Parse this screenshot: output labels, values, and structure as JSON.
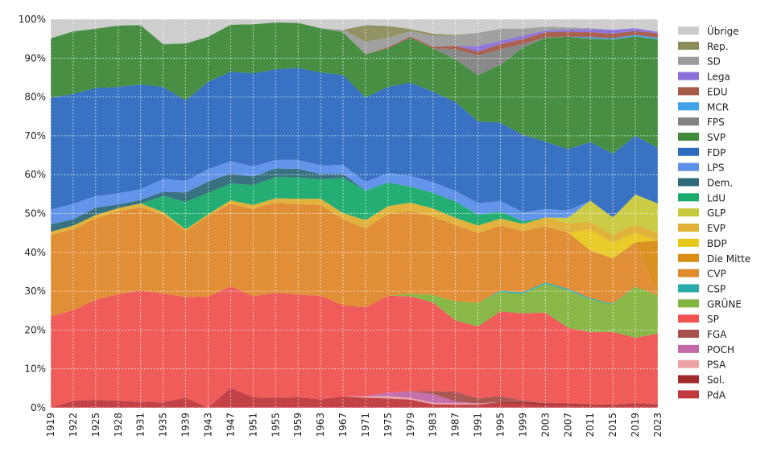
{
  "chart_data": {
    "type": "area",
    "stacked": true,
    "ylim": [
      0,
      100
    ],
    "yticks": [
      "0%",
      "10%",
      "20%",
      "30%",
      "40%",
      "50%",
      "60%",
      "70%",
      "80%",
      "90%",
      "100%"
    ],
    "grid": true,
    "legend_position": "right",
    "categories": [
      "1919",
      "1922",
      "1925",
      "1928",
      "1931",
      "1935",
      "1939",
      "1943",
      "1947",
      "1951",
      "1955",
      "1959",
      "1963",
      "1967",
      "1971",
      "1975",
      "1979",
      "1983",
      "1987",
      "1991",
      "1995",
      "1999",
      "2003",
      "2007",
      "2011",
      "2015",
      "2019",
      "2023"
    ],
    "series": [
      {
        "name": "PdA",
        "color": "#c0393d",
        "values": [
          0,
          1.8,
          2.0,
          1.8,
          1.5,
          1.4,
          2.6,
          0,
          5.1,
          2.7,
          2.6,
          2.7,
          2.2,
          2.9,
          2.6,
          2.4,
          2.1,
          0.9,
          0.8,
          0.8,
          1.2,
          1.0,
          0.7,
          0.7,
          0.5,
          0.4,
          1.0,
          0.5
        ]
      },
      {
        "name": "Sol.",
        "color": "#9e2a2a",
        "values": [
          0,
          0,
          0,
          0,
          0,
          0,
          0,
          0,
          0,
          0,
          0,
          0,
          0,
          0,
          0,
          0,
          0,
          0,
          0,
          0,
          0.3,
          0.5,
          0.5,
          0.4,
          0.3,
          0.3,
          0.2,
          0.3
        ]
      },
      {
        "name": "PSA",
        "color": "#e9a3a3",
        "values": [
          0,
          0,
          0,
          0,
          0,
          0,
          0,
          0,
          0,
          0,
          0,
          0,
          0,
          0,
          0.3,
          0.6,
          0.4,
          0.4,
          0.4,
          0.3,
          0,
          0,
          0,
          0,
          0,
          0,
          0,
          0
        ]
      },
      {
        "name": "POCH",
        "color": "#c468a8",
        "values": [
          0,
          0,
          0,
          0,
          0,
          0,
          0,
          0,
          0,
          0,
          0,
          0,
          0,
          0,
          0.1,
          0.9,
          1.7,
          2.2,
          0.4,
          0,
          0,
          0,
          0,
          0,
          0,
          0,
          0,
          0
        ]
      },
      {
        "name": "FGA",
        "color": "#a8504c",
        "values": [
          0,
          0,
          0,
          0,
          0,
          0,
          0,
          0,
          0,
          0,
          0,
          0,
          0,
          0,
          0,
          0,
          0.1,
          0.8,
          2.5,
          1.3,
          1.5,
          0.3,
          0,
          0,
          0,
          0,
          0,
          0
        ]
      },
      {
        "name": "SP",
        "color": "#ef5450",
        "values": [
          23.5,
          23.3,
          25.8,
          27.4,
          28.7,
          28.0,
          25.9,
          28.6,
          26.2,
          26.0,
          27.0,
          26.4,
          26.6,
          23.5,
          22.9,
          24.9,
          24.4,
          22.8,
          18.4,
          18.5,
          21.8,
          22.5,
          23.3,
          19.5,
          18.7,
          18.8,
          16.8,
          18.3
        ]
      },
      {
        "name": "GRÜNE",
        "color": "#84b53e",
        "values": [
          0,
          0,
          0,
          0,
          0,
          0,
          0,
          0,
          0,
          0,
          0,
          0,
          0,
          0,
          0,
          0,
          0.6,
          1.9,
          4.9,
          6.1,
          5.0,
          5.0,
          7.4,
          9.6,
          8.4,
          7.1,
          13.2,
          9.8
        ]
      },
      {
        "name": "CSP",
        "color": "#2aabab",
        "values": [
          0,
          0,
          0,
          0,
          0,
          0,
          0,
          0,
          0,
          0,
          0,
          0,
          0,
          0,
          0,
          0,
          0,
          0,
          0,
          0,
          0.3,
          0.4,
          0.4,
          0.4,
          0.3,
          0.2,
          0,
          0
        ]
      },
      {
        "name": "CVP",
        "color": "#e08a2c",
        "values": [
          21.0,
          20.9,
          20.9,
          21.4,
          21.4,
          20.3,
          17.0,
          20.8,
          21.2,
          22.5,
          23.2,
          23.3,
          23.4,
          22.1,
          20.3,
          21.1,
          21.3,
          20.2,
          19.6,
          18.0,
          16.8,
          15.8,
          14.4,
          14.5,
          12.3,
          11.6,
          11.4,
          0
        ]
      },
      {
        "name": "Die Mitte",
        "color": "#d98c14",
        "values": [
          0,
          0,
          0,
          0,
          0,
          0,
          0,
          0,
          0,
          0,
          0,
          0,
          0,
          0,
          0,
          0,
          0,
          0,
          0,
          0,
          0,
          0,
          0,
          0,
          0,
          0,
          0,
          14.1
        ]
      },
      {
        "name": "BDP",
        "color": "#e8c81c",
        "values": [
          0,
          0,
          0,
          0,
          0,
          0,
          0,
          0,
          0,
          0,
          0,
          0,
          0,
          0,
          0,
          0,
          0,
          0,
          0,
          0,
          0,
          0,
          0,
          0,
          5.4,
          4.1,
          2.4,
          0
        ]
      },
      {
        "name": "EVP",
        "color": "#e1b032",
        "values": [
          0.8,
          0.9,
          0.9,
          0.8,
          1.0,
          0.7,
          0.4,
          0.4,
          0.9,
          1.0,
          1.1,
          1.4,
          1.6,
          1.6,
          2.1,
          2.0,
          2.2,
          2.1,
          1.9,
          1.9,
          1.8,
          1.8,
          2.3,
          2.4,
          2.0,
          1.9,
          2.1,
          2.0
        ]
      },
      {
        "name": "GLP",
        "color": "#c9c93c",
        "values": [
          0,
          0,
          0,
          0,
          0,
          0,
          0,
          0,
          0,
          0,
          0,
          0,
          0,
          0,
          0,
          0,
          0,
          0,
          0,
          0,
          0,
          0,
          0,
          1.4,
          5.4,
          4.6,
          7.8,
          7.6
        ]
      },
      {
        "name": "LdU",
        "color": "#1aab6c",
        "values": [
          0,
          0,
          0,
          0,
          0,
          4.1,
          7.1,
          5.5,
          4.4,
          5.1,
          5.5,
          5.5,
          5.0,
          9.1,
          7.6,
          6.1,
          4.1,
          4.0,
          4.2,
          2.8,
          1.8,
          0.7,
          0,
          0,
          0,
          0,
          0,
          0
        ]
      },
      {
        "name": "Dem.",
        "color": "#2e6b7a",
        "values": [
          1.9,
          1.6,
          1.9,
          0.9,
          0.9,
          1.1,
          2.4,
          2.9,
          2.5,
          2.2,
          2.2,
          2.2,
          1.4,
          1.0,
          0,
          0,
          0,
          0,
          0,
          0,
          0,
          0,
          0,
          0,
          0,
          0,
          0,
          0
        ]
      },
      {
        "name": "LPS",
        "color": "#5b8fe8",
        "values": [
          3.8,
          4.0,
          3.0,
          2.9,
          2.8,
          3.3,
          3.0,
          3.2,
          3.2,
          2.6,
          2.2,
          2.3,
          2.2,
          2.3,
          2.2,
          2.4,
          2.8,
          2.8,
          2.7,
          3.0,
          2.7,
          2.3,
          2.2,
          1.9,
          0,
          0,
          0,
          0
        ]
      },
      {
        "name": "FDP",
        "color": "#2f6bbf",
        "values": [
          28.8,
          28.3,
          27.8,
          27.4,
          26.9,
          23.7,
          20.7,
          22.5,
          23.0,
          24.0,
          23.3,
          23.7,
          23.9,
          23.2,
          21.8,
          22.2,
          24.0,
          23.3,
          22.9,
          21.0,
          20.2,
          19.9,
          17.3,
          15.8,
          15.1,
          16.4,
          15.1,
          14.3
        ]
      },
      {
        "name": "SVP",
        "color": "#3f8a3a",
        "values": [
          15.3,
          16.1,
          15.3,
          15.8,
          15.3,
          11.0,
          14.7,
          11.6,
          12.1,
          12.6,
          12.1,
          11.6,
          11.4,
          11.0,
          11.1,
          9.9,
          11.6,
          11.1,
          11.0,
          11.9,
          14.9,
          22.5,
          26.7,
          28.9,
          26.6,
          29.4,
          25.6,
          27.9
        ]
      },
      {
        "name": "FPS",
        "color": "#838383",
        "values": [
          0,
          0,
          0,
          0,
          0,
          0,
          0,
          0,
          0,
          0,
          0,
          0,
          0,
          0,
          0,
          0,
          0,
          0,
          2.6,
          5.1,
          4.0,
          0.9,
          0.2,
          0,
          0,
          0,
          0,
          0
        ]
      },
      {
        "name": "MCR",
        "color": "#40a2e8",
        "values": [
          0,
          0,
          0,
          0,
          0,
          0,
          0,
          0,
          0,
          0,
          0,
          0,
          0,
          0,
          0,
          0,
          0,
          0,
          0,
          0,
          0,
          0,
          0,
          0,
          0.4,
          0.3,
          0.4,
          0.4
        ]
      },
      {
        "name": "EDU",
        "color": "#a65a48",
        "values": [
          0,
          0,
          0,
          0,
          0,
          0,
          0,
          0,
          0,
          0,
          0,
          0,
          0,
          0,
          0,
          0.3,
          0.3,
          0.4,
          0.9,
          1.0,
          1.3,
          1.3,
          1.3,
          1.3,
          1.3,
          1.2,
          1.0,
          1.2
        ]
      },
      {
        "name": "Lega",
        "color": "#8a70d8",
        "values": [
          0,
          0,
          0,
          0,
          0,
          0,
          0,
          0,
          0,
          0,
          0,
          0,
          0,
          0,
          0,
          0,
          0,
          0,
          0,
          1.4,
          0.9,
          0.9,
          0.4,
          0.6,
          0.8,
          1.0,
          0.7,
          0.4
        ]
      },
      {
        "name": "SD",
        "color": "#9c9c9c",
        "values": [
          0,
          0,
          0,
          0,
          0,
          0,
          0,
          0,
          0,
          0,
          0,
          0,
          0,
          0.6,
          3.2,
          2.5,
          1.3,
          2.9,
          2.5,
          3.4,
          3.1,
          1.8,
          1.0,
          0.5,
          0.2,
          0,
          0,
          0
        ]
      },
      {
        "name": "Rep.",
        "color": "#8e8d5a",
        "values": [
          0,
          0,
          0,
          0,
          0,
          0,
          0,
          0,
          0,
          0,
          0,
          0,
          0,
          0,
          4.3,
          3.0,
          0.6,
          0.5,
          0.3,
          0,
          0,
          0,
          0,
          0,
          0,
          0,
          0,
          0
        ]
      },
      {
        "name": "Übrige",
        "color": "#cccccc",
        "values": [
          4.9,
          3.1,
          2.5,
          1.6,
          1.5,
          6.4,
          6.2,
          4.5,
          1.4,
          1.3,
          1.2,
          1.0,
          2.3,
          2.2,
          1.5,
          2.3,
          2.4,
          1.9,
          2.6,
          2.6,
          2.5,
          2.6,
          2.3,
          2.0,
          1.7,
          1.7,
          1.8,
          3.1
        ]
      }
    ]
  }
}
